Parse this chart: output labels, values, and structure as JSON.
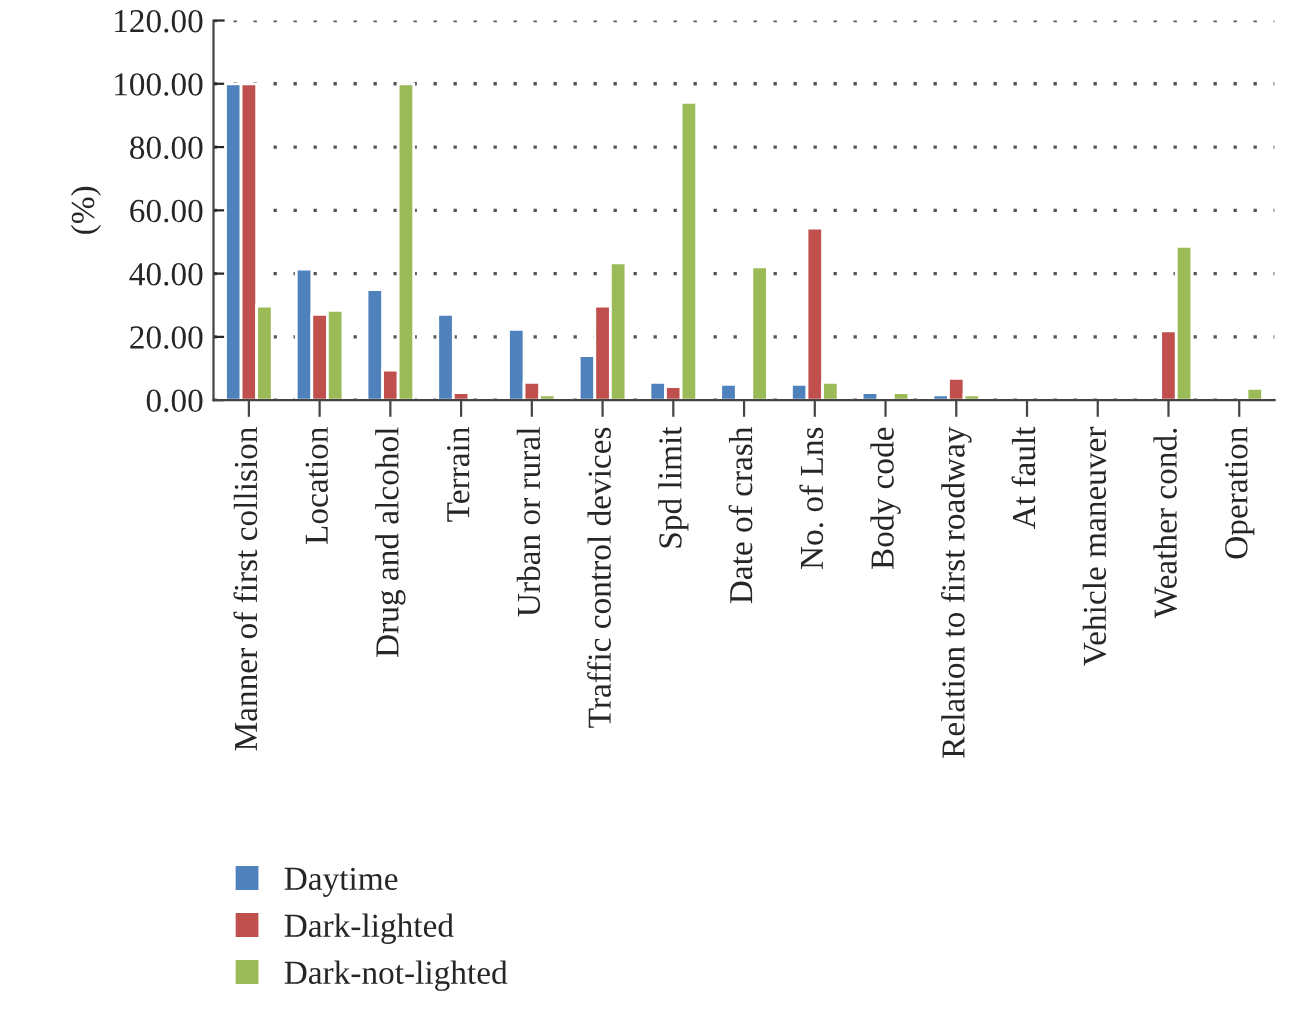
{
  "chart_data": {
    "type": "bar",
    "ylabel": "(%)",
    "categories": [
      "Manner of first collision",
      "Location",
      "Drug and alcohol",
      "Terrain",
      "Urban or rural",
      "Traffic control devices",
      "Spd limit",
      "Date of crash",
      "No. of Lns",
      "Body code",
      "Relation to first roadway",
      "At fault",
      "Vehicle maneuver",
      "Weather cond.",
      "Operation"
    ],
    "series": [
      {
        "name": "Daytime",
        "color": "#4f81bd",
        "values": [
          100,
          41.4,
          34.9,
          27.1,
          22.4,
          14.1,
          5.6,
          5.0,
          5.0,
          2.4,
          1.7,
          null,
          null,
          0,
          0
        ]
      },
      {
        "name": "Dark-lighted",
        "color": "#c0504d",
        "values": [
          100,
          27.1,
          9.5,
          2.4,
          5.6,
          29.7,
          4.3,
          0,
          54.4,
          0,
          6.9,
          0,
          0,
          21.9,
          0
        ]
      },
      {
        "name": "Dark-not-lighted",
        "color": "#9bbb59",
        "values": [
          29.7,
          28.4,
          100,
          0,
          1.7,
          43.4,
          94.1,
          42.1,
          5.6,
          2.4,
          1.7,
          0,
          0,
          48.6,
          3.7
        ]
      }
    ],
    "ylim": [
      0,
      120
    ],
    "yticks": [
      {
        "value": 0,
        "label": "0.00"
      },
      {
        "value": 20,
        "label": "20.00"
      },
      {
        "value": 40,
        "label": "40.00"
      },
      {
        "value": 60,
        "label": "60.00"
      },
      {
        "value": 80,
        "label": "80.00"
      },
      {
        "value": 100,
        "label": "100.00"
      },
      {
        "value": 120,
        "label": "120.00"
      }
    ],
    "grid": "y",
    "legend": "bottom left"
  }
}
